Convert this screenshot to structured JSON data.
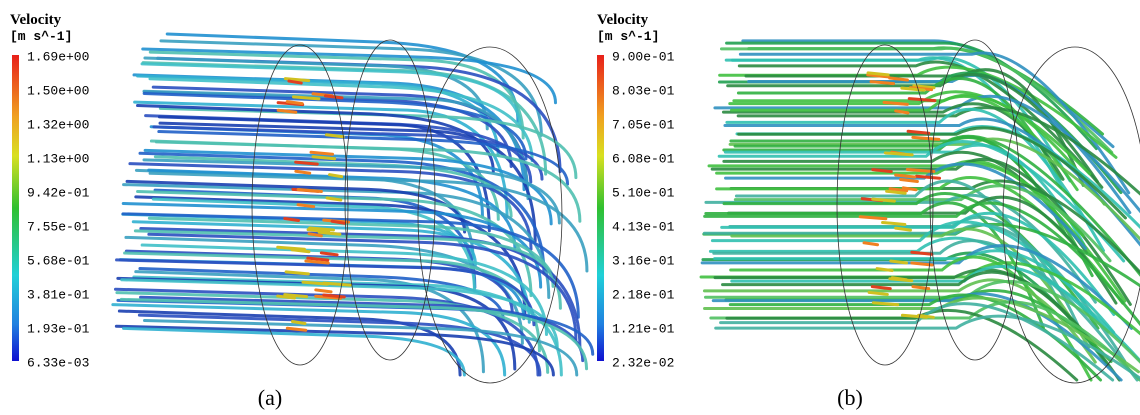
{
  "panels": [
    {
      "title": "Velocity",
      "unit": "[m s^-1]",
      "ticks": [
        "1.69e+00",
        "1.50e+00",
        "1.32e+00",
        "1.13e+00",
        "9.42e-01",
        "7.55e-01",
        "5.68e-01",
        "3.81e-01",
        "1.93e-01",
        "6.33e-03"
      ],
      "caption": "(a)"
    },
    {
      "title": "Velocity",
      "unit": "[m s^-1]",
      "ticks": [
        "9.00e-01",
        "8.03e-01",
        "7.05e-01",
        "6.08e-01",
        "5.10e-01",
        "4.13e-01",
        "3.16e-01",
        "2.18e-01",
        "1.21e-01",
        "2.32e-02"
      ],
      "caption": "(b)"
    }
  ]
}
